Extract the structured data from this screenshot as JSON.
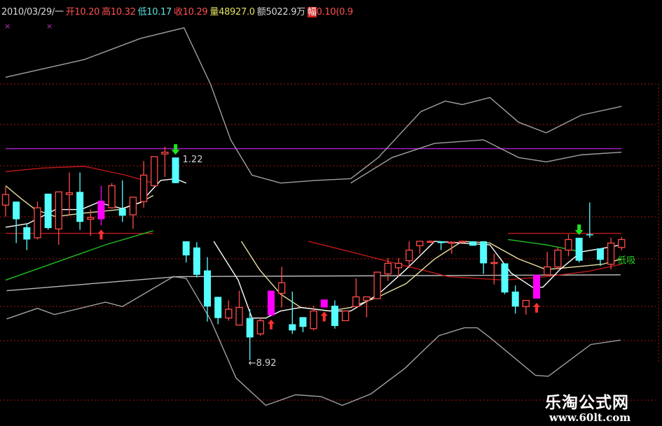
{
  "header": {
    "date": "2010/03/29/一",
    "open_label": "开",
    "open": "10.20",
    "high_label": "高",
    "high": "10.32",
    "low_label": "低",
    "low": "10.17",
    "close_label": "收",
    "close": "10.29",
    "volume_label": "量",
    "volume": "48927.0",
    "amount_label": "额",
    "amount": "5022.9万",
    "range_label": "幅",
    "range": "0.10(0.9"
  },
  "watermark": {
    "name": "乐淘公式网",
    "url": "www.60lt.com"
  },
  "chart_data": {
    "type": "candlestick",
    "colors": {
      "up": "#ff4a4a",
      "down": "#55ffff",
      "signal": "#ff00ff",
      "background": "#000000",
      "grid": "#8a1010"
    },
    "candles": [
      [
        10.68,
        10.89,
        10.55,
        10.8
      ],
      [
        10.72,
        10.72,
        10.25,
        10.52
      ],
      [
        10.43,
        10.47,
        10.17,
        10.29
      ],
      [
        10.31,
        10.72,
        10.29,
        10.65
      ],
      [
        10.81,
        10.81,
        10.4,
        10.42
      ],
      [
        10.41,
        10.83,
        10.23,
        10.83
      ],
      [
        10.8,
        11.05,
        10.57,
        10.82
      ],
      [
        10.83,
        11.05,
        10.4,
        10.49
      ],
      [
        10.52,
        10.63,
        10.33,
        10.54
      ],
      [
        10.52,
        10.9,
        10.45,
        10.73,
        "m"
      ],
      [
        10.65,
        10.93,
        10.64,
        10.9
      ],
      [
        10.64,
        10.96,
        10.49,
        10.56
      ],
      [
        10.57,
        10.77,
        10.41,
        10.77
      ],
      [
        10.72,
        11.18,
        10.65,
        11.02
      ],
      [
        10.9,
        11.23,
        10.89,
        11.23
      ],
      [
        11.26,
        11.34,
        11.0,
        11.28
      ],
      [
        11.22,
        11.22,
        10.93,
        10.93
      ],
      [
        10.27,
        10.27,
        10.03,
        10.11
      ],
      [
        10.2,
        10.26,
        9.86,
        9.89
      ],
      [
        9.94,
        10.09,
        9.36,
        9.53
      ],
      [
        9.64,
        9.64,
        9.33,
        9.4
      ],
      [
        9.4,
        9.6,
        9.37,
        9.5
      ],
      [
        9.32,
        9.71,
        9.32,
        9.52
      ],
      [
        9.4,
        9.5,
        8.92,
        9.18
      ],
      [
        9.22,
        9.41,
        9.2,
        9.37
      ],
      [
        9.43,
        9.71,
        9.43,
        9.71,
        "m"
      ],
      [
        9.68,
        9.98,
        9.52,
        9.8
      ],
      [
        9.33,
        9.7,
        9.22,
        9.26
      ],
      [
        9.41,
        9.41,
        9.24,
        9.3
      ],
      [
        9.28,
        9.54,
        9.26,
        9.48
      ],
      [
        9.52,
        9.61,
        9.52,
        9.61,
        "m"
      ],
      [
        9.54,
        9.6,
        9.28,
        9.31
      ],
      [
        9.37,
        9.48,
        9.37,
        9.48
      ],
      [
        9.53,
        9.85,
        9.52,
        9.64
      ],
      [
        9.6,
        9.64,
        9.41,
        9.64
      ],
      [
        9.62,
        9.92,
        9.62,
        9.92
      ],
      [
        9.9,
        10.08,
        9.82,
        10.02
      ],
      [
        9.97,
        10.08,
        9.87,
        10.02
      ],
      [
        10.05,
        10.27,
        9.97,
        10.17
      ],
      [
        10.22,
        10.27,
        10.13,
        10.27
      ],
      [
        10.27,
        10.28,
        10.26,
        10.27
      ],
      [
        10.27,
        10.27,
        10.17,
        10.25
      ],
      [
        10.26,
        10.27,
        10.13,
        10.26
      ],
      [
        10.27,
        10.28,
        10.26,
        10.27
      ],
      [
        10.27,
        10.27,
        10.22,
        10.22
      ],
      [
        10.27,
        10.27,
        9.9,
        10.02
      ],
      [
        10.02,
        10.13,
        9.78,
        10.03
      ],
      [
        10.02,
        10.02,
        9.67,
        9.69
      ],
      [
        9.7,
        9.77,
        9.45,
        9.53
      ],
      [
        9.53,
        9.6,
        9.44,
        9.6
      ],
      [
        9.62,
        9.89,
        9.62,
        9.89,
        "m"
      ],
      [
        9.89,
        10.15,
        9.89,
        9.98
      ],
      [
        9.98,
        10.2,
        9.95,
        10.17
      ],
      [
        10.17,
        10.35,
        10.1,
        10.29
      ],
      [
        10.31,
        10.31,
        10.03,
        10.05
      ],
      [
        10.35,
        10.71,
        10.31,
        10.34
      ],
      [
        10.19,
        10.19,
        9.99,
        10.06
      ],
      [
        10.01,
        10.31,
        9.95,
        10.25
      ],
      [
        10.2,
        10.32,
        10.17,
        10.29
      ]
    ],
    "lines": [
      {
        "color": "#a0a0a0",
        "points": [
          [
            0,
            12.13
          ],
          [
            7.4,
            12.33
          ],
          [
            12.7,
            12.57
          ],
          [
            16.8,
            12.69
          ],
          [
            19.3,
            12.05
          ],
          [
            21.2,
            11.42
          ],
          [
            23.2,
            11.02
          ],
          [
            25.9,
            10.93
          ],
          [
            29.2,
            10.96
          ],
          [
            32.5,
            10.98
          ],
          [
            35.1,
            11.22
          ],
          [
            39.1,
            11.74
          ],
          [
            41.4,
            11.86
          ],
          [
            43,
            11.82
          ],
          [
            45.6,
            11.9
          ],
          [
            48.3,
            11.62
          ],
          [
            50.9,
            11.5
          ],
          [
            54.2,
            11.7
          ],
          [
            58,
            11.8
          ]
        ]
      },
      {
        "color": "#a0a0a0",
        "points": [
          [
            32.5,
            10.93
          ],
          [
            36.4,
            11.22
          ],
          [
            40.4,
            11.38
          ],
          [
            45,
            11.42
          ],
          [
            48.3,
            11.22
          ],
          [
            50.9,
            11.17
          ],
          [
            54.2,
            11.25
          ],
          [
            58,
            11.28
          ]
        ]
      },
      {
        "color": "#a0a0a0",
        "points": [
          [
            0.1,
            9.39
          ],
          [
            3,
            9.51
          ],
          [
            4.6,
            9.44
          ],
          [
            9.4,
            9.58
          ],
          [
            11,
            9.53
          ],
          [
            15.8,
            9.87
          ],
          [
            17,
            9.85
          ],
          [
            19.3,
            9.38
          ],
          [
            21.7,
            8.72
          ],
          [
            24.5,
            8.41
          ],
          [
            27.3,
            8.53
          ],
          [
            29.7,
            8.51
          ],
          [
            31.7,
            8.41
          ],
          [
            34.4,
            8.54
          ],
          [
            37.6,
            8.83
          ],
          [
            40.8,
            9.2
          ],
          [
            43.2,
            9.29
          ],
          [
            44.4,
            9.29
          ],
          [
            45.6,
            9.18
          ],
          [
            49.9,
            8.75
          ],
          [
            51.1,
            8.74
          ],
          [
            55.1,
            9.1
          ],
          [
            57.9,
            9.15
          ]
        ]
      },
      {
        "color": "#b8b8b8",
        "points": [
          [
            0.1,
            9.71
          ],
          [
            16.2,
            9.87
          ],
          [
            57.9,
            9.89
          ]
        ]
      },
      {
        "color": "#c01818",
        "points": [
          [
            0,
            11.06
          ],
          [
            3.4,
            11.1
          ],
          [
            7.4,
            11.12
          ],
          [
            11.3,
            11.02
          ],
          [
            13.9,
            10.93
          ]
        ]
      },
      {
        "color": "#c01818",
        "points": [
          [
            28.5,
            10.27
          ],
          [
            32.5,
            10.15
          ],
          [
            36.4,
            10.03
          ],
          [
            41.7,
            9.87
          ],
          [
            47,
            9.83
          ],
          [
            50.9,
            9.87
          ],
          [
            54.9,
            9.93
          ],
          [
            58,
            10.01
          ]
        ]
      },
      {
        "color": "#20c020",
        "points": [
          [
            0,
            9.83
          ],
          [
            4.7,
            10.03
          ],
          [
            9.4,
            10.23
          ],
          [
            13.9,
            10.39
          ]
        ]
      },
      {
        "color": "#20c020",
        "points": [
          [
            47.3,
            10.29
          ],
          [
            50.9,
            10.23
          ],
          [
            54.2,
            10.15
          ]
        ]
      },
      {
        "color": "#e8e0a0",
        "points": [
          [
            0,
            10.9
          ],
          [
            1.5,
            10.75
          ],
          [
            2.8,
            10.63
          ],
          [
            4.7,
            10.55
          ],
          [
            7.4,
            10.59
          ],
          [
            10.7,
            10.63
          ],
          [
            12.7,
            10.71
          ],
          [
            13.9,
            10.79
          ]
        ]
      },
      {
        "color": "#e8e0a0",
        "points": [
          [
            22.2,
            10.27
          ],
          [
            23.9,
            9.95
          ],
          [
            25.9,
            9.67
          ],
          [
            27.8,
            9.52
          ],
          [
            30.5,
            9.48
          ],
          [
            32.5,
            9.52
          ],
          [
            35.1,
            9.64
          ],
          [
            37.7,
            9.79
          ],
          [
            40.4,
            10.07
          ],
          [
            43,
            10.27
          ],
          [
            45.6,
            10.25
          ],
          [
            48.3,
            10.07
          ],
          [
            50.9,
            9.95
          ],
          [
            53.6,
            9.98
          ],
          [
            56.2,
            10.01
          ],
          [
            58,
            10.07
          ]
        ]
      },
      {
        "color": "#ffffff",
        "points": [
          [
            0,
            10.43
          ],
          [
            2.1,
            10.47
          ],
          [
            4.7,
            10.63
          ],
          [
            7.1,
            10.63
          ],
          [
            8.7,
            10.71
          ],
          [
            11,
            10.64
          ],
          [
            12.7,
            10.71
          ],
          [
            14.6,
            10.96
          ],
          [
            16,
            10.98
          ],
          [
            17,
            10.93
          ]
        ]
      },
      {
        "color": "#ffffff",
        "points": [
          [
            19.6,
            10.27
          ],
          [
            21.9,
            9.83
          ],
          [
            23.2,
            9.4
          ],
          [
            24.5,
            9.4
          ],
          [
            25.9,
            9.48
          ],
          [
            27.8,
            9.52
          ],
          [
            30.5,
            9.48
          ],
          [
            32.5,
            9.48
          ],
          [
            35.1,
            9.67
          ],
          [
            37.7,
            9.95
          ],
          [
            40.4,
            10.27
          ],
          [
            45.6,
            10.23
          ],
          [
            47.6,
            9.91
          ],
          [
            49.6,
            9.75
          ],
          [
            50.6,
            9.75
          ],
          [
            52.2,
            9.95
          ],
          [
            54.2,
            10.15
          ],
          [
            56.2,
            10.19
          ],
          [
            58,
            10.23
          ]
        ]
      }
    ],
    "hlines": [
      {
        "color": "#a020c0",
        "price": 11.32,
        "from": 0,
        "to": 58
      },
      {
        "color": "#b01818",
        "price": 10.36,
        "from": 0,
        "to": 13.9
      },
      {
        "color": "#b01818",
        "price": 10.36,
        "from": 47.3,
        "to": 58
      }
    ],
    "buy_signals": [
      9,
      25,
      30,
      50
    ],
    "sell_signals": [
      16,
      54
    ],
    "annotations": [
      {
        "text": "1.22",
        "index": 16,
        "price": 11.22,
        "color": "#d0d0d0"
      },
      {
        "text": "←8.92",
        "index": 23,
        "price": 8.92,
        "color": "#d0d0d0"
      },
      {
        "text": "低吸",
        "index": 58,
        "price": 10.05,
        "color": "#20d020"
      }
    ],
    "markers": [
      "×",
      "×"
    ]
  }
}
